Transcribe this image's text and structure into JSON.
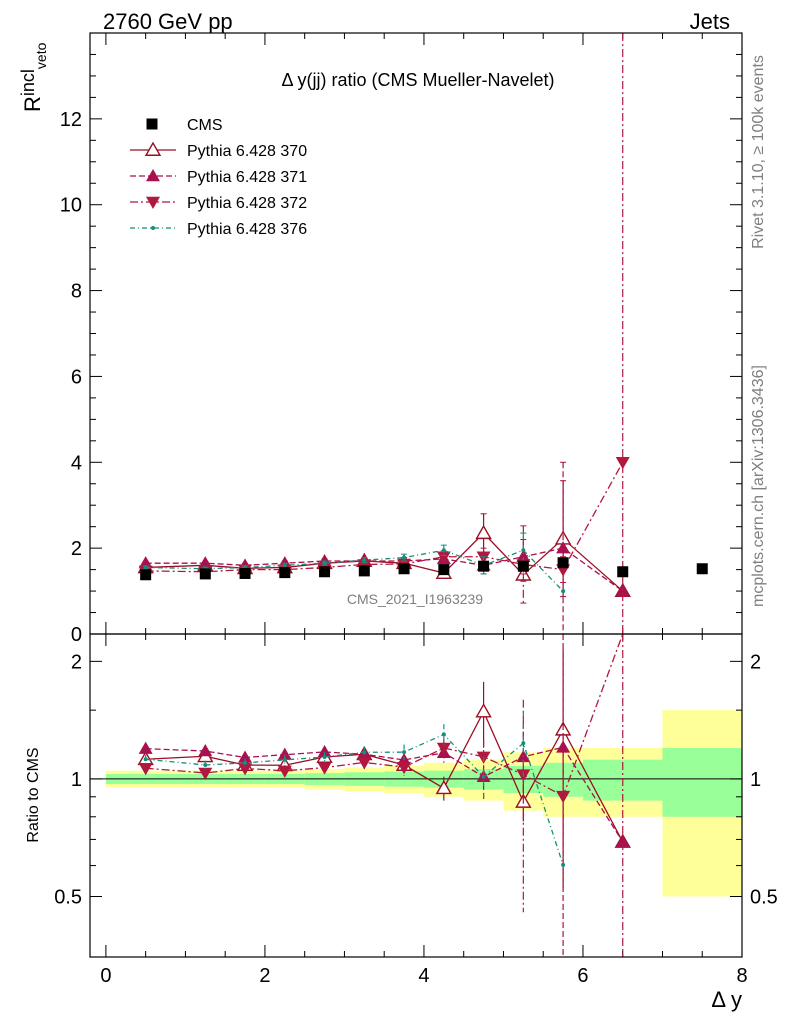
{
  "header": {
    "left": "2760 GeV pp",
    "right": "Jets"
  },
  "side_labels": {
    "rivet": "Rivet 3.1.10, ≥ 100k events",
    "mcplots": "mcplots.cern.ch [arXiv:1306.3436]"
  },
  "watermark": "CMS_2021_I1963239",
  "chart_data": {
    "type": "scatter",
    "title": "Δ y(jj) ratio (CMS Mueller-Navelet)",
    "ylabel_main": "R",
    "ylabel_main_sup": "incl",
    "ylabel_main_sub": "veto",
    "ylabel_ratio": "Ratio to CMS",
    "xlabel": "Δ y",
    "xlim": [
      -0.2,
      8.0
    ],
    "ylim_main": [
      0,
      14
    ],
    "ylim_ratio": [
      0.35,
      2.35
    ],
    "main_yticks": [
      "0",
      "2",
      "4",
      "6",
      "8",
      "10",
      "12"
    ],
    "ratio_yticks": [
      "0.5",
      "1",
      "2"
    ],
    "xticks": [
      "0",
      "2",
      "4",
      "6",
      "8"
    ],
    "reference_line": 1.0,
    "data": {
      "name": "CMS",
      "x": [
        0.5,
        1.25,
        1.75,
        2.25,
        2.75,
        3.25,
        3.75,
        4.25,
        4.75,
        5.25,
        5.75,
        6.5,
        7.5
      ],
      "y": [
        1.38,
        1.4,
        1.41,
        1.43,
        1.45,
        1.47,
        1.52,
        1.5,
        1.58,
        1.58,
        1.66,
        1.45,
        1.52
      ],
      "x_edges": [
        0.0,
        1.0,
        1.5,
        2.0,
        2.5,
        3.0,
        3.5,
        4.0,
        4.5,
        5.0,
        5.5,
        6.0,
        7.0,
        8.0
      ],
      "band_stat": [
        0.03,
        0.03,
        0.03,
        0.03,
        0.035,
        0.04,
        0.045,
        0.05,
        0.06,
        0.08,
        0.1,
        0.12,
        0.2
      ],
      "band_total": [
        0.05,
        0.05,
        0.05,
        0.05,
        0.06,
        0.07,
        0.08,
        0.1,
        0.12,
        0.17,
        0.2,
        0.2,
        0.5
      ]
    },
    "series": [
      {
        "name": "Pythia 6.428 370",
        "color": "#9a0f24",
        "marker": "triangle-open",
        "line": "solid",
        "x": [
          0.5,
          1.25,
          1.75,
          2.25,
          2.75,
          3.25,
          3.75,
          4.25,
          4.75,
          5.25,
          5.75,
          6.5
        ],
        "y": [
          1.55,
          1.6,
          1.53,
          1.55,
          1.65,
          1.7,
          1.65,
          1.42,
          2.35,
          1.38,
          2.22,
          1.0
        ],
        "err": [
          0.04,
          0.04,
          0.04,
          0.05,
          0.05,
          0.06,
          0.08,
          0.1,
          0.45,
          0.15,
          1.35,
          0
        ]
      },
      {
        "name": "Pythia 6.428 371",
        "color": "#a8104f",
        "marker": "triangle-up",
        "line": "dashed",
        "x": [
          0.5,
          1.25,
          1.75,
          2.25,
          2.75,
          3.25,
          3.75,
          4.25,
          4.75,
          5.25,
          5.75,
          6.5
        ],
        "y": [
          1.65,
          1.65,
          1.6,
          1.65,
          1.7,
          1.7,
          1.7,
          1.75,
          1.6,
          1.8,
          2.0,
          1.0
        ],
        "err": [
          0.04,
          0.04,
          0.04,
          0.05,
          0.05,
          0.06,
          0.08,
          0.1,
          0.2,
          0.4,
          2.0,
          0
        ]
      },
      {
        "name": "Pythia 6.428 372",
        "color": "#b0183f",
        "marker": "triangle-down",
        "line": "dashdot",
        "x": [
          0.5,
          1.25,
          1.75,
          2.25,
          2.75,
          3.25,
          3.75,
          4.25,
          4.75,
          5.25,
          5.75,
          6.5
        ],
        "y": [
          1.47,
          1.45,
          1.5,
          1.5,
          1.55,
          1.62,
          1.63,
          1.8,
          1.8,
          1.62,
          1.5,
          4.0
        ],
        "err": [
          0.04,
          0.04,
          0.04,
          0.05,
          0.05,
          0.06,
          0.08,
          0.1,
          0.2,
          0.9,
          0.3,
          10.0
        ]
      },
      {
        "name": "Pythia 6.428 376",
        "color": "#14907a",
        "marker": "dot",
        "line": "dashdotted",
        "x": [
          0.5,
          1.25,
          1.75,
          2.25,
          2.75,
          3.25,
          3.75,
          4.25,
          4.75,
          5.25,
          5.75
        ],
        "y": [
          1.55,
          1.52,
          1.55,
          1.6,
          1.65,
          1.72,
          1.78,
          1.95,
          1.6,
          1.95,
          1.0
        ],
        "err": [
          0.04,
          0.04,
          0.04,
          0.05,
          0.05,
          0.06,
          0.08,
          0.12,
          0.2,
          0.4,
          0
        ]
      }
    ]
  }
}
